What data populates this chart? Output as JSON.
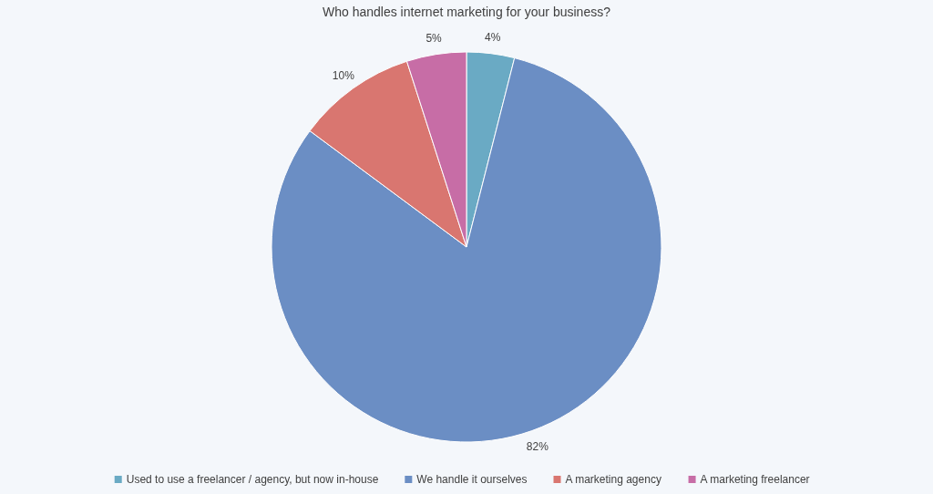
{
  "chart_data": {
    "type": "pie",
    "title": "Who handles internet marketing for your business?",
    "categories": [
      "Used to use a freelancer / agency, but now in-house",
      "We handle it ourselves",
      "A marketing agency",
      "A marketing freelancer"
    ],
    "values": [
      4,
      82,
      10,
      5
    ],
    "colors": [
      "#6aaac4",
      "#6b8ec4",
      "#d97670",
      "#c76da6"
    ],
    "value_labels": [
      "4%",
      "82%",
      "10%",
      "5%"
    ],
    "legend": "bottom"
  }
}
